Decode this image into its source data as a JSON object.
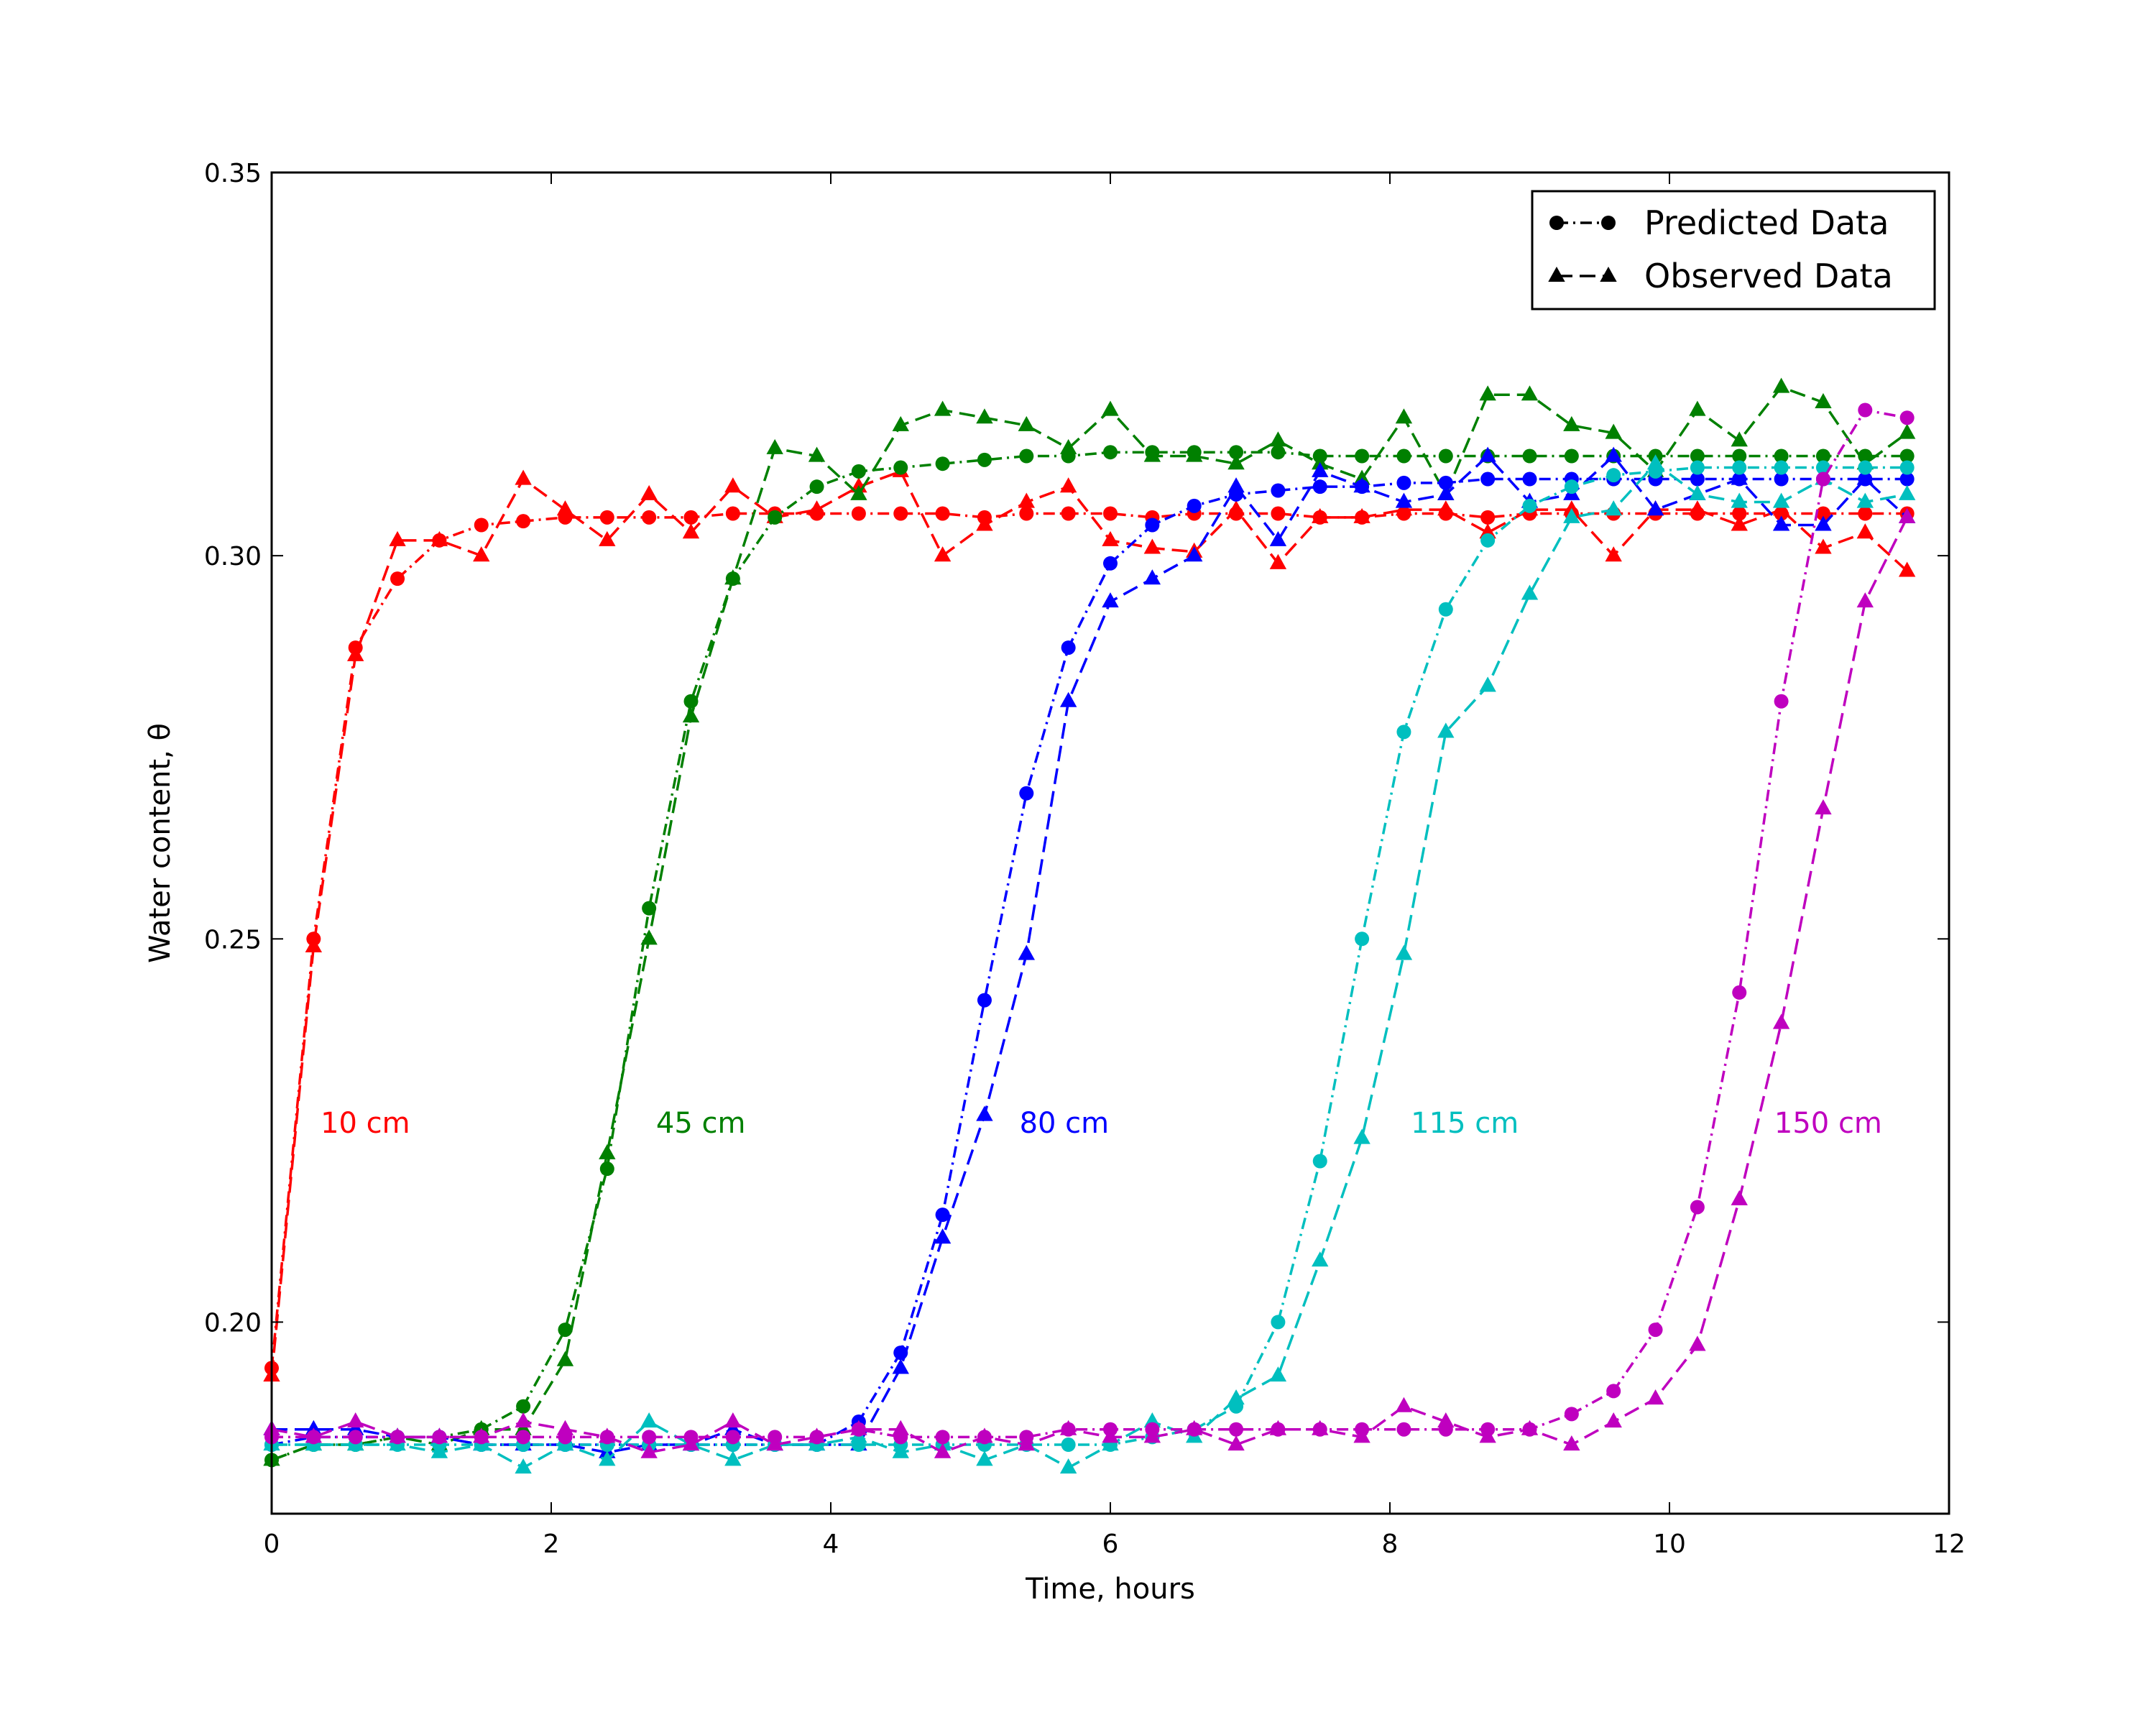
{
  "chart_data": {
    "type": "line",
    "title": "",
    "xlabel": "Time, hours",
    "ylabel": "Water content, θ",
    "xlim": [
      0,
      12
    ],
    "ylim": [
      0.175,
      0.35
    ],
    "xticks": [
      "0",
      "2",
      "4",
      "6",
      "8",
      "10",
      "12"
    ],
    "yticks": [
      "0.20",
      "0.25",
      "0.30",
      "0.35"
    ],
    "grid": false,
    "legend_position": "top-right",
    "legend": [
      {
        "label": "Predicted Data",
        "marker": "circle",
        "linestyle": "dashdot"
      },
      {
        "label": "Observed Data",
        "marker": "triangle",
        "linestyle": "dashed"
      }
    ],
    "x": [
      0,
      0.3,
      0.6,
      0.9,
      1.2,
      1.5,
      1.8,
      2.1,
      2.4,
      2.7,
      3.0,
      3.3,
      3.6,
      3.9,
      4.2,
      4.5,
      4.8,
      5.1,
      5.4,
      5.7,
      6.0,
      6.3,
      6.6,
      6.9,
      7.2,
      7.5,
      7.8,
      8.1,
      8.4,
      8.7,
      9.0,
      9.3,
      9.6,
      9.9,
      10.2,
      10.5,
      10.8,
      11.1,
      11.4,
      11.7
    ],
    "series": [
      {
        "name": "10 cm",
        "color": "#ff0000",
        "label_pos": [
          0.35,
          0.226
        ],
        "predicted": [
          0.194,
          0.25,
          0.288,
          0.297,
          0.302,
          0.304,
          0.3045,
          0.305,
          0.305,
          0.305,
          0.305,
          0.3055,
          0.3055,
          0.3055,
          0.3055,
          0.3055,
          0.3055,
          0.305,
          0.3055,
          0.3055,
          0.3055,
          0.305,
          0.3055,
          0.3055,
          0.3055,
          0.305,
          0.305,
          0.3055,
          0.3055,
          0.305,
          0.3055,
          0.3055,
          0.3055,
          0.3055,
          0.3055,
          0.3055,
          0.3055,
          0.3055,
          0.3055,
          0.3055
        ],
        "observed": [
          0.193,
          0.249,
          0.287,
          0.302,
          0.302,
          0.3,
          0.31,
          0.306,
          0.302,
          0.308,
          0.303,
          0.309,
          0.305,
          0.306,
          0.309,
          0.311,
          0.3,
          0.304,
          0.307,
          0.309,
          0.302,
          0.301,
          0.3005,
          0.306,
          0.299,
          0.305,
          0.305,
          0.306,
          0.306,
          0.303,
          0.306,
          0.306,
          0.3,
          0.306,
          0.306,
          0.304,
          0.306,
          0.301,
          0.303,
          0.298
        ]
      },
      {
        "name": "45 cm",
        "color": "#008000",
        "label_pos": [
          2.75,
          0.226
        ],
        "predicted": [
          0.182,
          0.184,
          0.184,
          0.185,
          0.185,
          0.186,
          0.189,
          0.199,
          0.22,
          0.254,
          0.281,
          0.297,
          0.305,
          0.309,
          0.311,
          0.3115,
          0.312,
          0.3125,
          0.313,
          0.313,
          0.3135,
          0.3135,
          0.3135,
          0.3135,
          0.3135,
          0.313,
          0.313,
          0.313,
          0.313,
          0.313,
          0.313,
          0.313,
          0.313,
          0.313,
          0.313,
          0.313,
          0.313,
          0.313,
          0.313,
          0.313
        ],
        "observed": [
          0.182,
          0.184,
          0.184,
          0.185,
          0.184,
          0.186,
          0.186,
          0.195,
          0.222,
          0.25,
          0.279,
          0.297,
          0.314,
          0.313,
          0.308,
          0.317,
          0.319,
          0.318,
          0.317,
          0.314,
          0.319,
          0.313,
          0.313,
          0.312,
          0.315,
          0.312,
          0.31,
          0.318,
          0.308,
          0.321,
          0.321,
          0.317,
          0.316,
          0.311,
          0.319,
          0.315,
          0.322,
          0.32,
          0.312,
          0.316
        ]
      },
      {
        "name": "80 cm",
        "color": "#0000ff",
        "label_pos": [
          5.35,
          0.226
        ],
        "predicted": [
          0.184,
          0.185,
          0.185,
          0.185,
          0.185,
          0.184,
          0.184,
          0.184,
          0.184,
          0.184,
          0.184,
          0.184,
          0.184,
          0.184,
          0.187,
          0.196,
          0.214,
          0.242,
          0.269,
          0.288,
          0.299,
          0.304,
          0.3065,
          0.308,
          0.3085,
          0.309,
          0.309,
          0.3095,
          0.3095,
          0.31,
          0.31,
          0.31,
          0.31,
          0.31,
          0.31,
          0.31,
          0.31,
          0.31,
          0.31,
          0.31
        ],
        "observed": [
          0.186,
          0.186,
          0.186,
          0.185,
          0.185,
          0.184,
          0.184,
          0.184,
          0.183,
          0.184,
          0.184,
          0.186,
          0.184,
          0.184,
          0.184,
          0.194,
          0.211,
          0.227,
          0.248,
          0.281,
          0.294,
          0.297,
          0.3,
          0.309,
          0.302,
          0.311,
          0.309,
          0.307,
          0.308,
          0.313,
          0.307,
          0.308,
          0.313,
          0.306,
          0.308,
          0.31,
          0.304,
          0.304,
          0.31,
          0.305
        ]
      },
      {
        "name": "115 cm",
        "color": "#00bfbf",
        "label_pos": [
          8.15,
          0.226
        ],
        "predicted": [
          0.184,
          0.184,
          0.184,
          0.184,
          0.184,
          0.184,
          0.184,
          0.184,
          0.184,
          0.184,
          0.184,
          0.184,
          0.184,
          0.184,
          0.184,
          0.184,
          0.184,
          0.184,
          0.184,
          0.184,
          0.184,
          0.185,
          0.186,
          0.189,
          0.2,
          0.221,
          0.25,
          0.277,
          0.293,
          0.302,
          0.3065,
          0.309,
          0.3105,
          0.311,
          0.3115,
          0.3115,
          0.3115,
          0.3115,
          0.3115,
          0.3115
        ],
        "observed": [
          0.184,
          0.184,
          0.184,
          0.184,
          0.183,
          0.184,
          0.181,
          0.184,
          0.182,
          0.187,
          0.184,
          0.182,
          0.184,
          0.184,
          0.185,
          0.183,
          0.184,
          0.182,
          0.184,
          0.181,
          0.184,
          0.187,
          0.185,
          0.19,
          0.193,
          0.208,
          0.224,
          0.248,
          0.277,
          0.283,
          0.295,
          0.305,
          0.306,
          0.312,
          0.308,
          0.307,
          0.307,
          0.31,
          0.307,
          0.308
        ]
      },
      {
        "name": "150 cm",
        "color": "#bf00bf",
        "label_pos": [
          10.75,
          0.226
        ],
        "predicted": [
          0.185,
          0.185,
          0.185,
          0.185,
          0.185,
          0.185,
          0.185,
          0.185,
          0.185,
          0.185,
          0.185,
          0.185,
          0.185,
          0.185,
          0.186,
          0.185,
          0.185,
          0.185,
          0.185,
          0.186,
          0.186,
          0.186,
          0.186,
          0.186,
          0.186,
          0.186,
          0.186,
          0.186,
          0.186,
          0.186,
          0.186,
          0.188,
          0.191,
          0.199,
          0.215,
          0.243,
          0.281,
          0.31,
          0.319,
          0.318
        ],
        "observed": [
          0.186,
          0.185,
          0.187,
          0.185,
          0.185,
          0.185,
          0.187,
          0.186,
          0.185,
          0.183,
          0.184,
          0.187,
          0.184,
          0.185,
          0.186,
          0.186,
          0.183,
          0.185,
          0.184,
          0.186,
          0.185,
          0.185,
          0.186,
          0.184,
          0.186,
          0.186,
          0.185,
          0.189,
          0.187,
          0.185,
          0.186,
          0.184,
          0.187,
          0.19,
          0.197,
          0.216,
          0.239,
          0.267,
          0.294,
          0.305
        ]
      }
    ]
  }
}
